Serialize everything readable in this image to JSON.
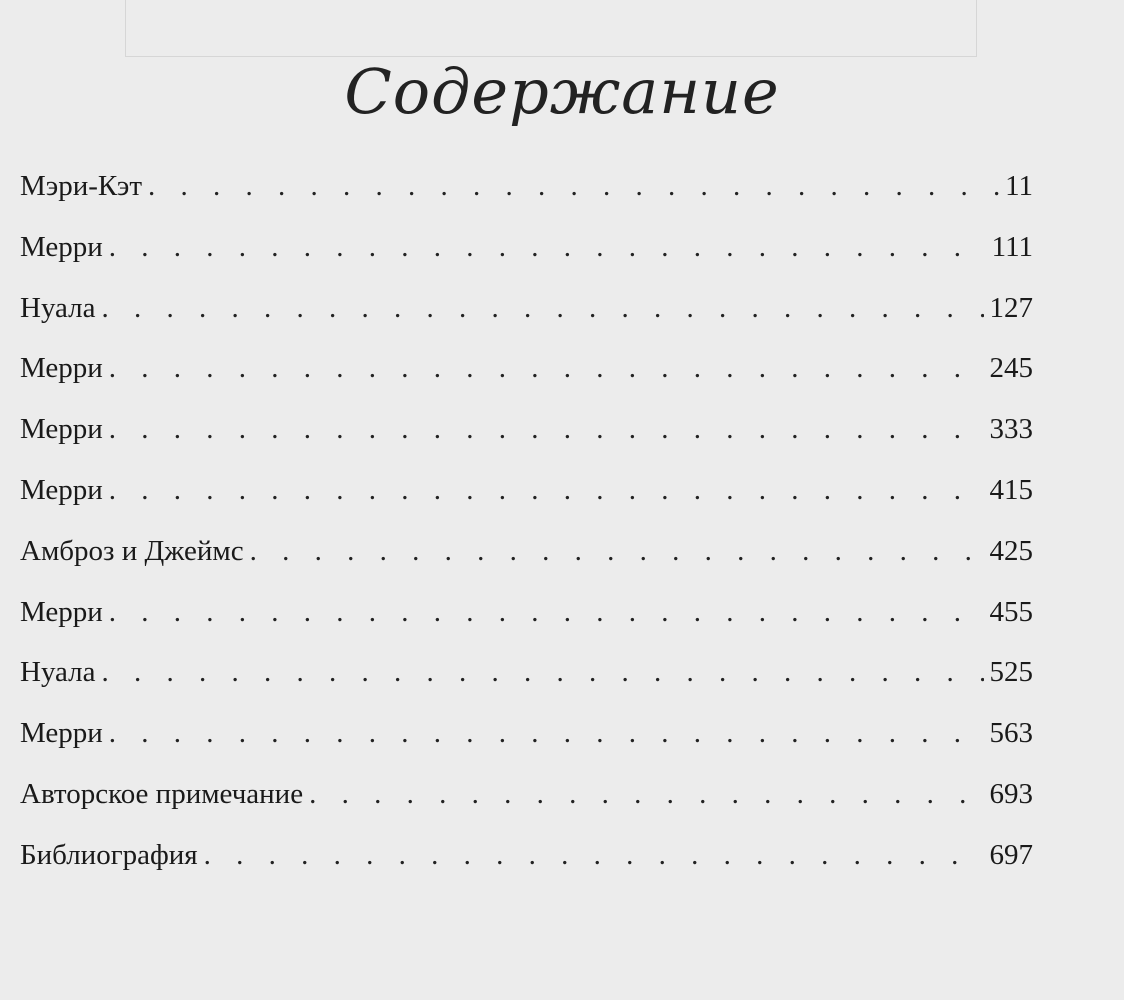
{
  "title": "Содержание",
  "entries": [
    {
      "label": "Мэри-Кэт",
      "page": "11"
    },
    {
      "label": "Мерри",
      "page": "111"
    },
    {
      "label": "Нуала",
      "page": "127"
    },
    {
      "label": "Мерри",
      "page": "245"
    },
    {
      "label": "Мерри",
      "page": "333"
    },
    {
      "label": "Мерри",
      "page": "415"
    },
    {
      "label": "Амброз и Джеймс",
      "page": "425"
    },
    {
      "label": "Мерри",
      "page": "455"
    },
    {
      "label": "Нуала",
      "page": "525"
    },
    {
      "label": "Мерри",
      "page": "563"
    },
    {
      "label": "Авторское примечание",
      "page": "693"
    },
    {
      "label": "Библиография",
      "page": "697"
    }
  ]
}
